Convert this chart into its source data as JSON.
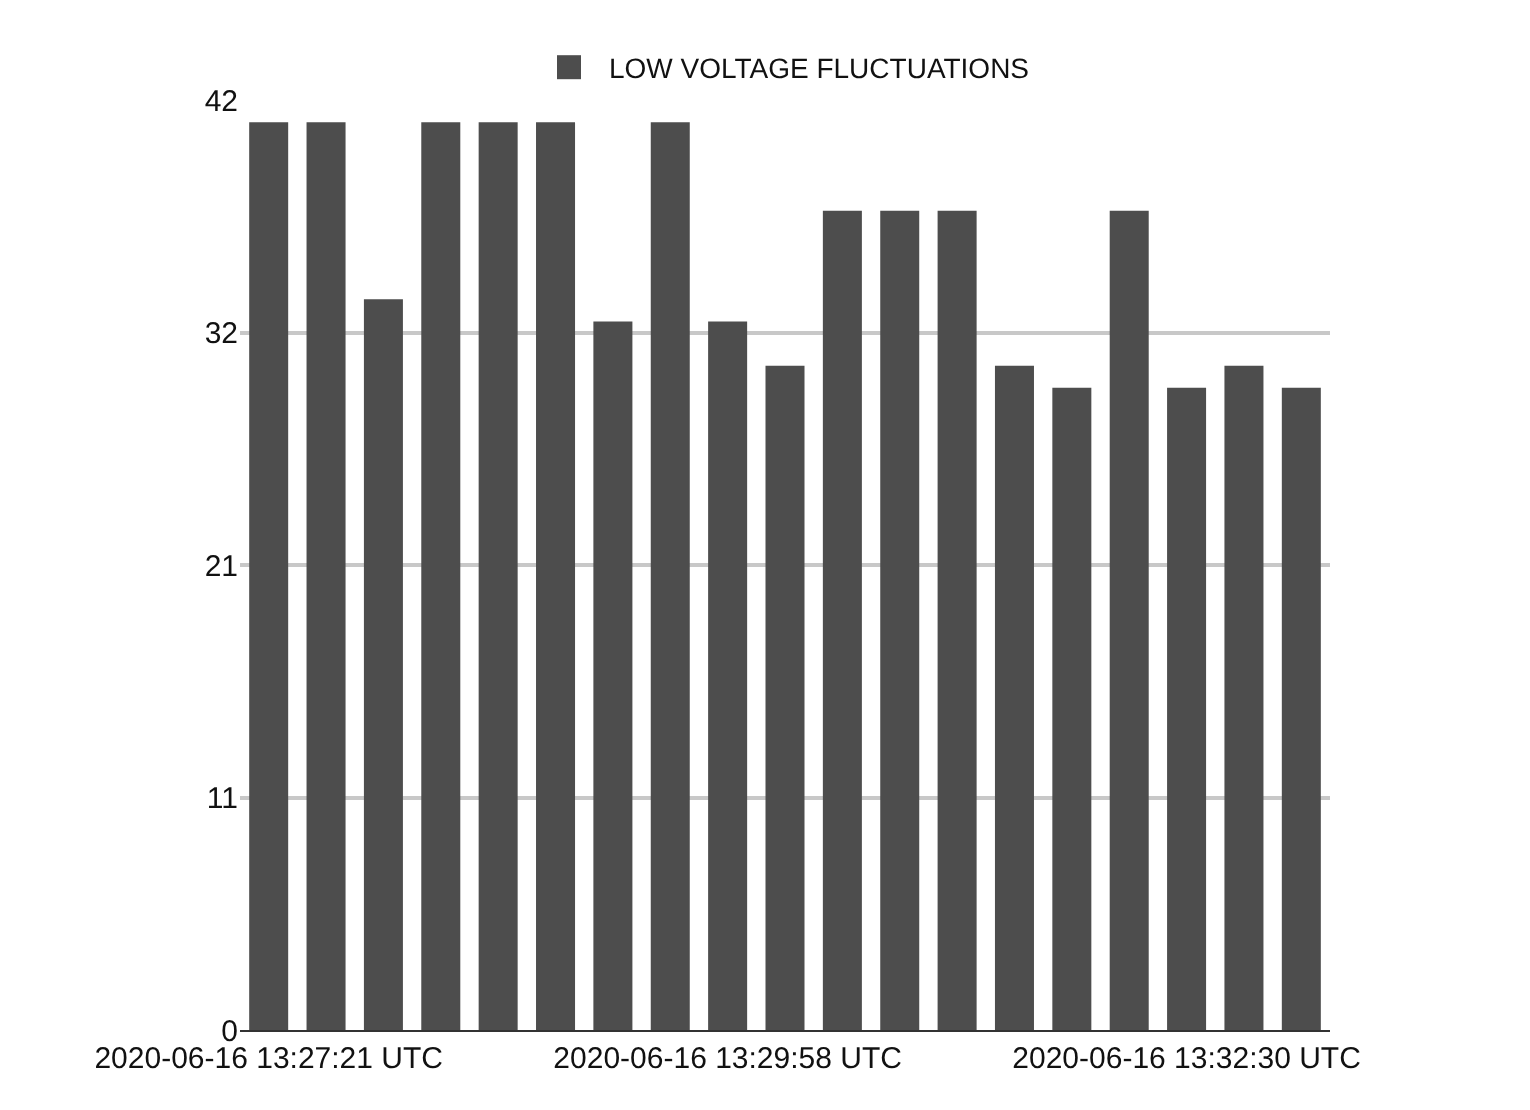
{
  "chart_data": {
    "type": "bar",
    "categories": [
      "2020-06-16 13:27:21 UTC",
      null,
      null,
      null,
      null,
      null,
      null,
      null,
      "2020-06-16 13:29:58 UTC",
      null,
      null,
      null,
      null,
      null,
      null,
      null,
      "2020-06-16 13:32:30 UTC",
      null,
      null
    ],
    "series": [
      {
        "name": "LOW VOLTAGE FLUCTUATIONS",
        "color": "#4d4d4d",
        "values": [
          41,
          41,
          33,
          41,
          41,
          41,
          32,
          41,
          32,
          30,
          37,
          37,
          37,
          30,
          29,
          37,
          29,
          30,
          29
        ]
      }
    ],
    "ylim": [
      0,
      42
    ],
    "yticks": [
      0,
      {
        "value": 10.5,
        "label": "11"
      },
      21,
      {
        "value": 31.5,
        "label": "32"
      },
      42
    ],
    "grid": "y",
    "legend": "top"
  }
}
